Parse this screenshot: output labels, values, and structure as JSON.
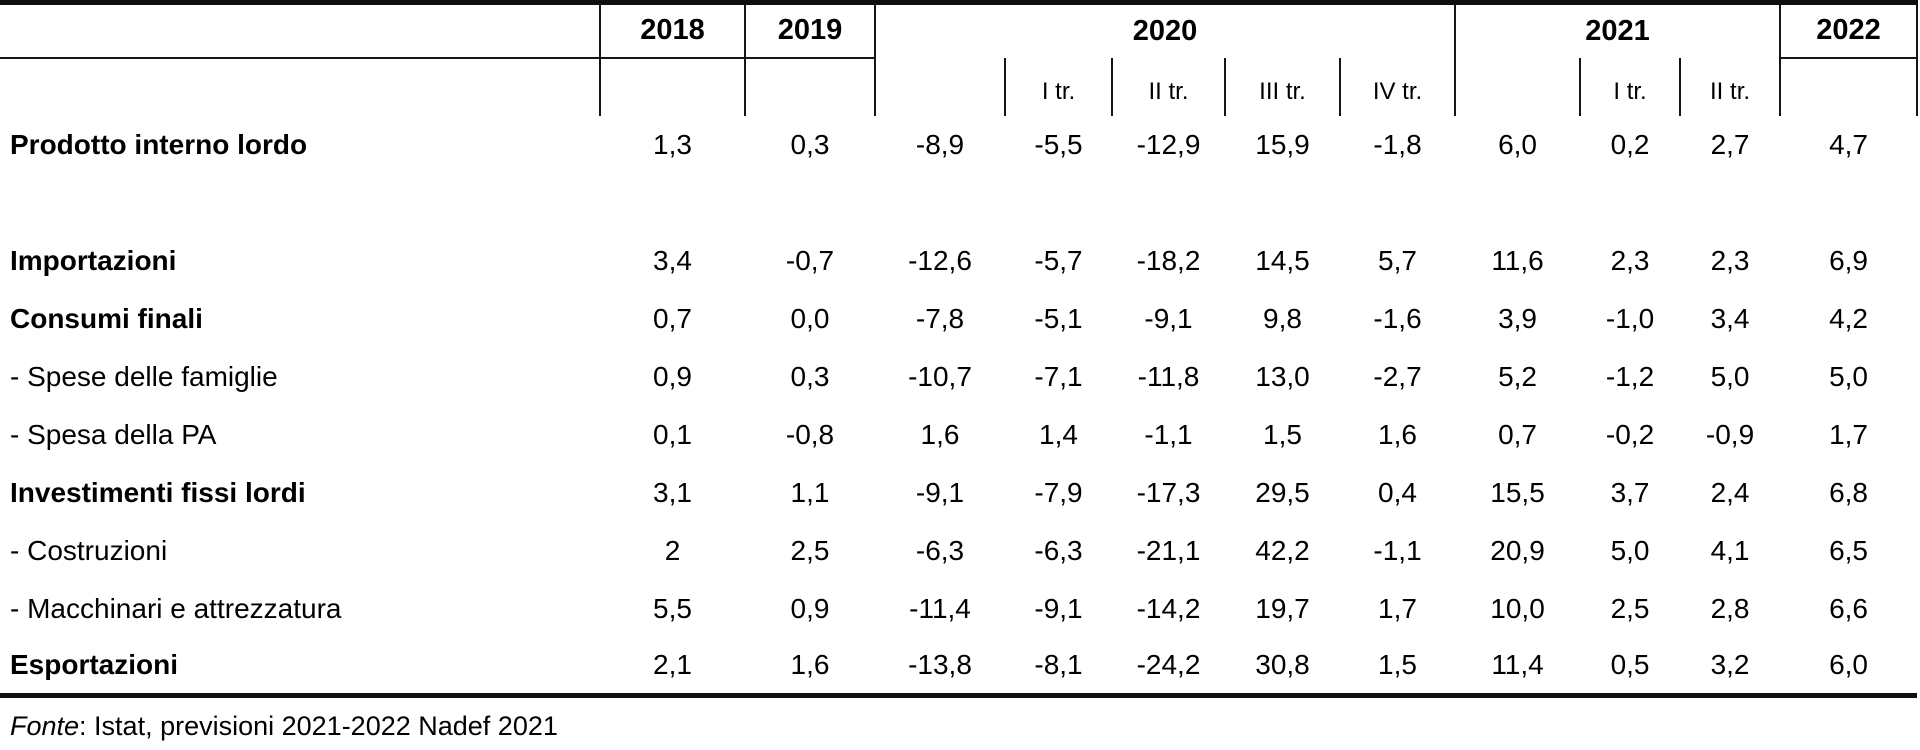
{
  "page": {
    "background_color": "#ffffff",
    "text_color": "#000000",
    "rule_color": "#151515"
  },
  "table": {
    "year_headers": [
      {
        "label": "",
        "span": 1
      },
      {
        "label": "2018",
        "span": 1
      },
      {
        "label": "2019",
        "span": 1
      },
      {
        "label": "2020",
        "span": 5
      },
      {
        "label": "2021",
        "span": 3
      },
      {
        "label": "2022",
        "span": 1
      }
    ],
    "quarter_headers": [
      "",
      "",
      "",
      "",
      "I tr.",
      "II tr.",
      "III tr.",
      "IV tr.",
      "",
      "I tr.",
      "II tr.",
      ""
    ],
    "rows": [
      {
        "label": "Prodotto interno lordo",
        "bold": true,
        "spacer_after": true,
        "values": [
          "1,3",
          "0,3",
          "-8,9",
          "-5,5",
          "-12,9",
          "15,9",
          "-1,8",
          "6,0",
          "0,2",
          "2,7",
          "4,7"
        ]
      },
      {
        "label": "Importazioni",
        "bold": true,
        "spacer_after": false,
        "values": [
          "3,4",
          "-0,7",
          "-12,6",
          "-5,7",
          "-18,2",
          "14,5",
          "5,7",
          "11,6",
          "2,3",
          "2,3",
          "6,9"
        ]
      },
      {
        "label": "Consumi finali",
        "bold": true,
        "spacer_after": false,
        "values": [
          "0,7",
          "0,0",
          "-7,8",
          "-5,1",
          "-9,1",
          "9,8",
          "-1,6",
          "3,9",
          "-1,0",
          "3,4",
          "4,2"
        ]
      },
      {
        "label": "- Spese delle famiglie",
        "bold": false,
        "spacer_after": false,
        "values": [
          "0,9",
          "0,3",
          "-10,7",
          "-7,1",
          "-11,8",
          "13,0",
          "-2,7",
          "5,2",
          "-1,2",
          "5,0",
          "5,0"
        ]
      },
      {
        "label": "- Spesa della PA",
        "bold": false,
        "spacer_after": false,
        "values": [
          "0,1",
          "-0,8",
          "1,6",
          "1,4",
          "-1,1",
          "1,5",
          "1,6",
          "0,7",
          "-0,2",
          "-0,9",
          "1,7"
        ]
      },
      {
        "label": "Investimenti fissi lordi",
        "bold": true,
        "spacer_after": false,
        "values": [
          "3,1",
          "1,1",
          "-9,1",
          "-7,9",
          "-17,3",
          "29,5",
          "0,4",
          "15,5",
          "3,7",
          "2,4",
          "6,8"
        ]
      },
      {
        "label": "- Costruzioni",
        "bold": false,
        "spacer_after": false,
        "values": [
          "2",
          "2,5",
          "-6,3",
          "-6,3",
          "-21,1",
          "42,2",
          "-1,1",
          "20,9",
          "5,0",
          "4,1",
          "6,5"
        ]
      },
      {
        "label": "- Macchinari e attrezzatura",
        "bold": false,
        "spacer_after": false,
        "values": [
          "5,5",
          "0,9",
          "-11,4",
          "-9,1",
          "-14,2",
          "19,7",
          "1,7",
          "10,0",
          "2,5",
          "2,8",
          "6,6"
        ]
      },
      {
        "label": "Esportazioni",
        "bold": true,
        "spacer_after": false,
        "values": [
          "2,1",
          "1,6",
          "-13,8",
          "-8,1",
          "-24,2",
          "30,8",
          "1,5",
          "11,4",
          "0,5",
          "3,2",
          "6,0"
        ]
      }
    ],
    "footer": {
      "source_label_italic": "Fonte",
      "source_text": ": Istat, previsioni 2021-2022 Nadef 2021"
    }
  }
}
